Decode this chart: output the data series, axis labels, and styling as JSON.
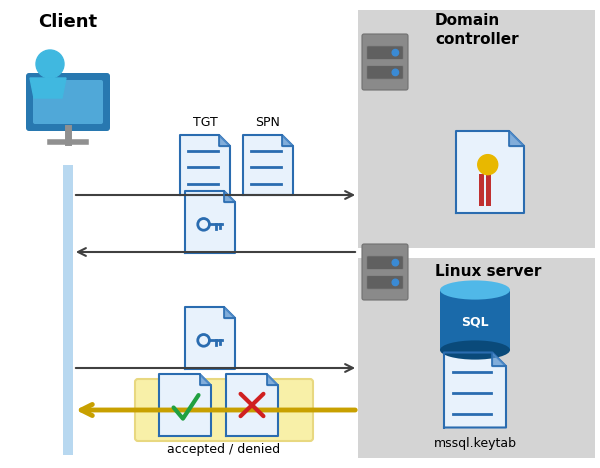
{
  "bg_color": "#ffffff",
  "gray_box_color": "#d4d4d4",
  "client_label": "Client",
  "domain_label": "Domain\ncontroller",
  "linux_label": "Linux server",
  "tgt_label": "TGT",
  "spn_label": "SPN",
  "accepted_denied_label": "accepted / denied",
  "mssql_label": "mssql.keytab",
  "sql_label": "SQL",
  "client_bar_color": "#b8d8f0",
  "arrow_color1": "#404040",
  "arrow_color2": "#c8a000",
  "doc_blue": "#2a6cb0",
  "doc_light": "#e8f2fc",
  "doc_fold": "#5590cc",
  "server_gray": "#8a8a8a",
  "server_dark": "#505050",
  "server_slot_bg": "#606060",
  "sql_blue_dark": "#0a4a7a",
  "sql_blue_mid": "#1a6aaa",
  "sql_blue_light": "#3090d0",
  "sql_top": "#50b8e8",
  "person_blue": "#1e7ab8",
  "person_light": "#40b8e0",
  "monitor_dark": "#2878b0",
  "monitor_gray": "#909090",
  "cert_yellow": "#e8b800",
  "cert_red": "#c03030",
  "check_green": "#20a040",
  "cross_red": "#d02020",
  "highlight_yellow": "#f8f0a8",
  "highlight_yellow_border": "#e8d880"
}
